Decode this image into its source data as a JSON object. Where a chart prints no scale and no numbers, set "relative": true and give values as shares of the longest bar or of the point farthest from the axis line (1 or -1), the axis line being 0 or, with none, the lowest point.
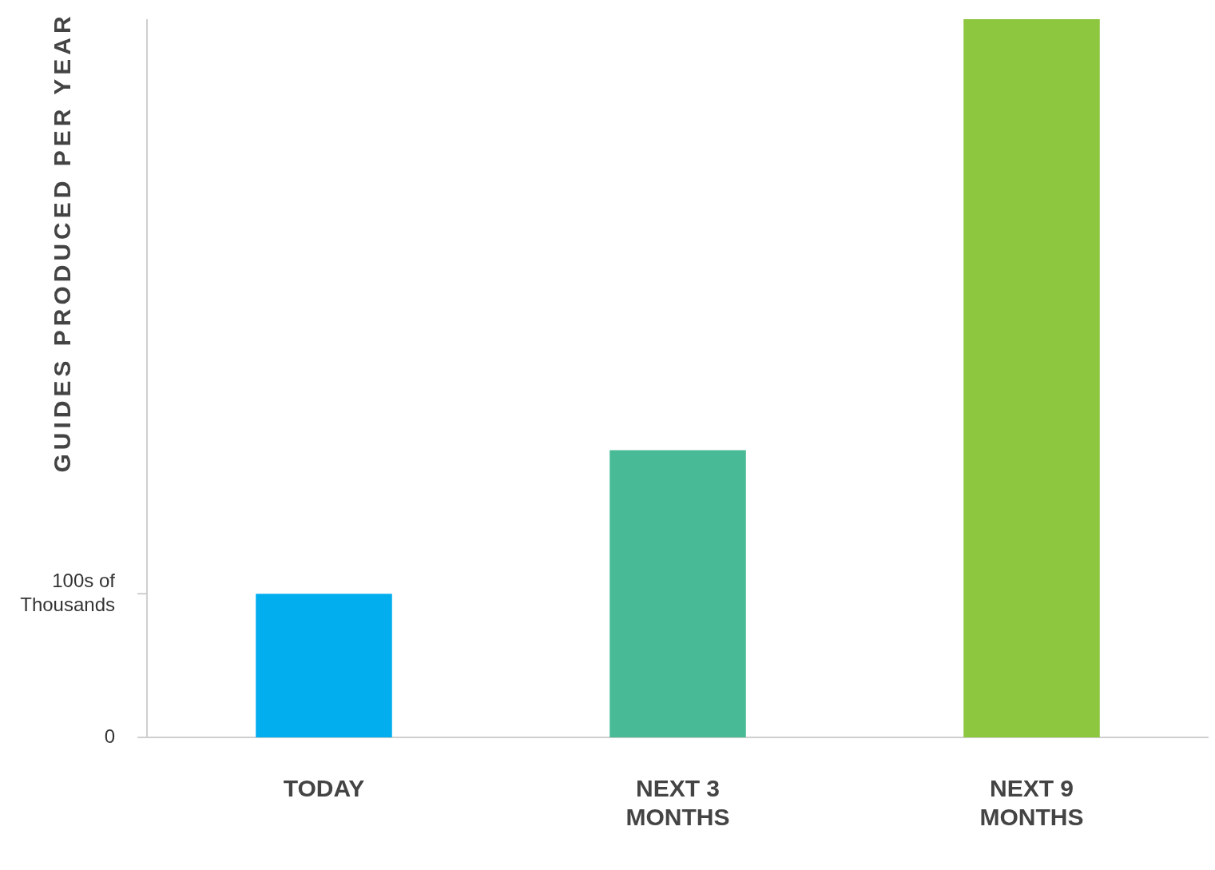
{
  "chart_data": {
    "type": "bar",
    "ylabel": "GUIDES PRODUCED PER YEAR",
    "categories": [
      "TODAY",
      "NEXT 3 MONTHS",
      "NEXT 9 MONTHS"
    ],
    "values": [
      0.2,
      0.4,
      1
    ],
    "colors": [
      "#03aeef",
      "#48bb96",
      "#8dc63f"
    ],
    "relative": true,
    "annotations": [
      "0",
      "100s of\nThousands"
    ],
    "legend": false
  }
}
